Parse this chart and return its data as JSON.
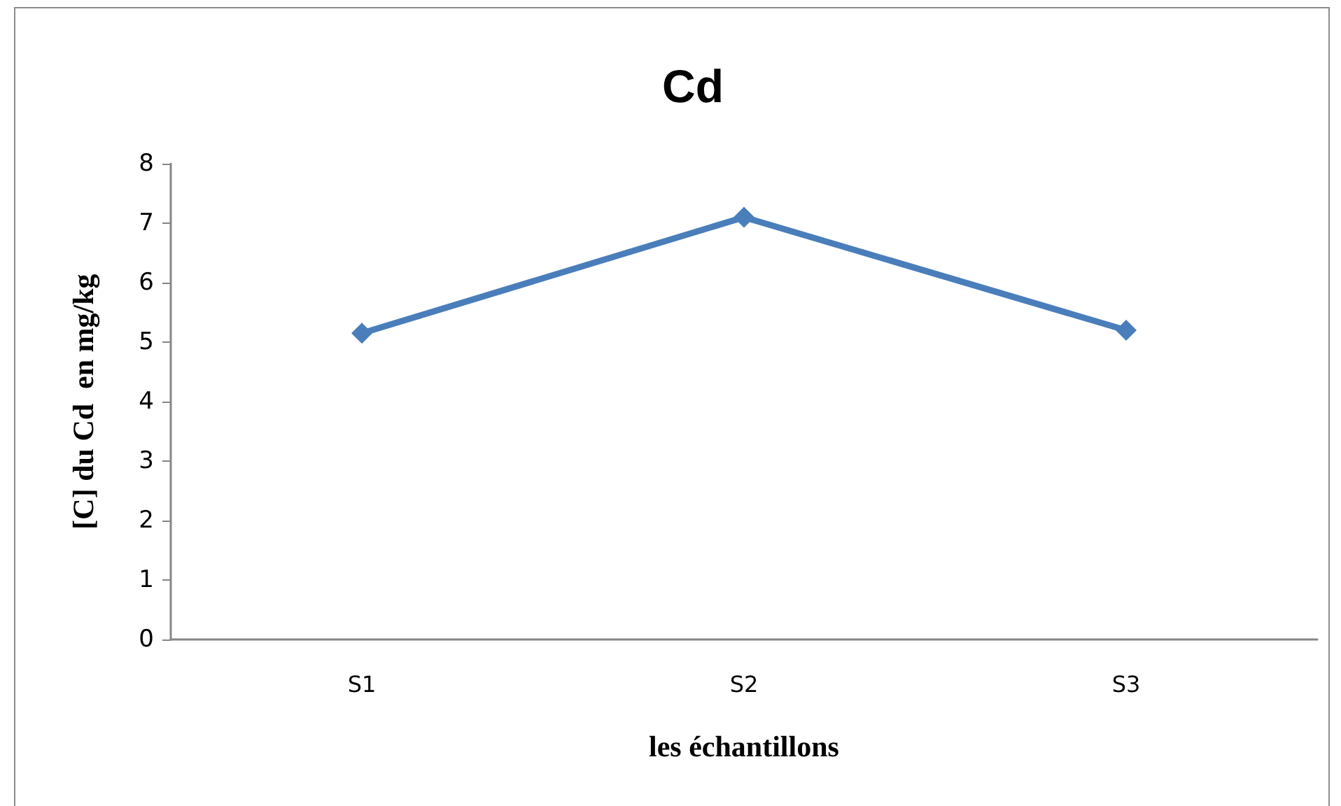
{
  "chart_data": {
    "type": "line",
    "title": "Cd",
    "xlabel": "les échantillons",
    "ylabel": "[C] du Cd  en mg/kg",
    "categories": [
      "S1",
      "S2",
      "S3"
    ],
    "series": [
      {
        "color": "#4a7ebb",
        "values": [
          5.15,
          7.1,
          5.2
        ]
      }
    ],
    "ylim": [
      0,
      8
    ],
    "yticks": [
      0,
      1,
      2,
      3,
      4,
      5,
      6,
      7,
      8
    ],
    "marker": "diamond",
    "line_style": "solid"
  }
}
